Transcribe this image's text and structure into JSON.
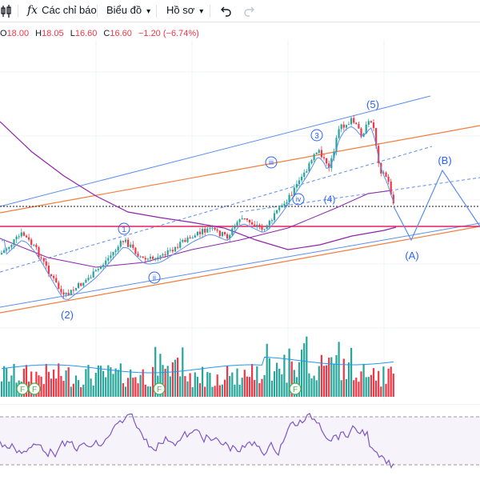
{
  "toolbar": {
    "fx_symbol": "fx",
    "indicators_label": "Các chỉ báo",
    "chart_menu_label": "Biểu đồ",
    "profile_menu_label": "Hồ sơ",
    "undo_icon": "undo-icon",
    "redo_icon": "redo-icon"
  },
  "ohlc": {
    "open_key": "O",
    "open": "18.00",
    "high_key": "H",
    "high": "18.05",
    "low_key": "L",
    "low": "16.60",
    "close_key": "C",
    "close": "16.60",
    "change": "−1.20 (−6.74%)"
  },
  "wave_labels": {
    "w5": "(5)",
    "w3": "3",
    "w3_iii": "iii",
    "w3_iv": "iv",
    "w4": "(4)",
    "wB": "(B)",
    "wA": "(A)",
    "w1": "1",
    "w1_ii": "ii",
    "w2": "(2)"
  },
  "earnings_marker": "F",
  "colors": {
    "up": "#26a69a",
    "down": "#f23645",
    "channel_blue": "#5b8def",
    "channel_orange": "#f57c3a",
    "support_magenta": "#e91e63",
    "ma_purple": "#8e24aa",
    "wave_blue": "#2962ff",
    "rsi": "#7e57c2",
    "accent_green": "#4caf50"
  },
  "chart_data": {
    "type": "candlestick",
    "series": [
      {
        "name": "",
        "values_ohlc_last": [
          18.0,
          18.05,
          16.6,
          16.6
        ]
      }
    ]
  }
}
